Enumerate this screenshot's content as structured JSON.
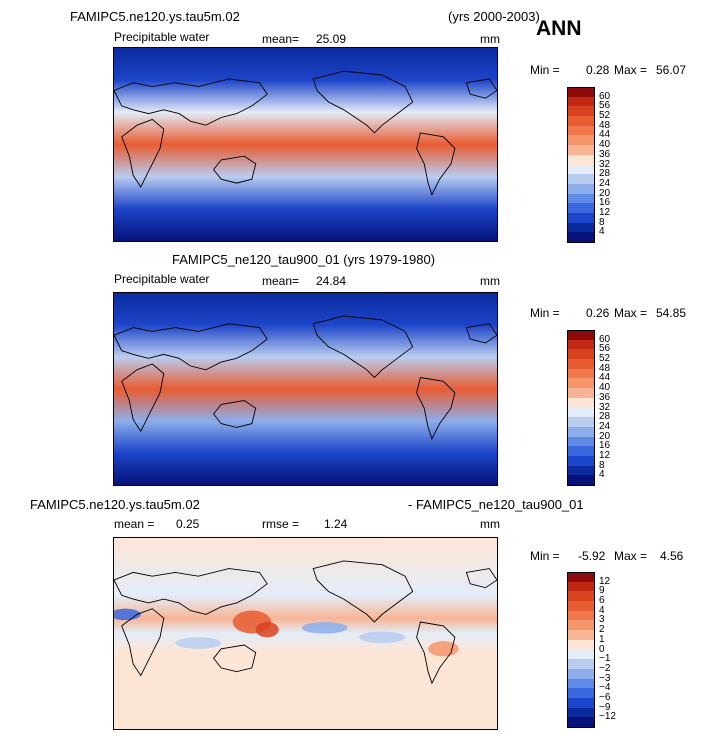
{
  "season": "ANN",
  "panels": [
    {
      "case": "FAMIPC5.ne120.ys.tau5m.02",
      "years": "(yrs 2000-2003)",
      "variable": "Precipitable water",
      "mean_label": "mean=",
      "mean_value": "25.09",
      "units": "mm",
      "min_label": "Min =",
      "min_value": "0.28",
      "max_label": "Max =",
      "max_value": "56.07"
    },
    {
      "case": "FAMIPC5_ne120_tau900_01 (yrs 1979-1980)",
      "variable": "Precipitable water",
      "mean_label": "mean=",
      "mean_value": "24.84",
      "units": "mm",
      "min_label": "Min =",
      "min_value": "0.26",
      "max_label": "Max =",
      "max_value": "54.85"
    },
    {
      "case_a": "FAMIPC5.ne120.ys.tau5m.02",
      "case_b": "- FAMIPC5_ne120_tau900_01",
      "mean_label": "mean =",
      "mean_value": "0.25",
      "rmse_label": "rmse =",
      "rmse_value": "1.24",
      "units": "mm",
      "min_label": "Min =",
      "min_value": "-5.92",
      "max_label": "Max =",
      "max_value": "4.56"
    }
  ],
  "chart_data": [
    {
      "type": "heatmap",
      "title": "Precipitable water",
      "units": "mm",
      "colorbar_levels": [
        "60",
        "56",
        "52",
        "48",
        "44",
        "40",
        "36",
        "32",
        "28",
        "24",
        "20",
        "16",
        "12",
        "8",
        "4"
      ],
      "colors": [
        "#8c0b0b",
        "#c02814",
        "#d9421f",
        "#e85c32",
        "#f0784a",
        "#f4966a",
        "#f7b596",
        "#fde5d6",
        "#e3ecf8",
        "#b9cdf0",
        "#8daeeb",
        "#5f8ae6",
        "#3b68de",
        "#1d45c9",
        "#0a2a9e",
        "#06127a"
      ],
      "zonal_mean_by_latitude": {
        "lat": [
          -90,
          -60,
          -30,
          0,
          30,
          60,
          90
        ],
        "value": [
          2,
          8,
          24,
          50,
          28,
          10,
          4
        ]
      },
      "stats": {
        "mean": 25.09,
        "min": 0.28,
        "max": 56.07
      }
    },
    {
      "type": "heatmap",
      "title": "Precipitable water",
      "units": "mm",
      "colorbar_levels": [
        "60",
        "56",
        "52",
        "48",
        "44",
        "40",
        "36",
        "32",
        "28",
        "24",
        "20",
        "16",
        "12",
        "8",
        "4"
      ],
      "colors": [
        "#8c0b0b",
        "#c02814",
        "#d9421f",
        "#e85c32",
        "#f0784a",
        "#f4966a",
        "#f7b596",
        "#fde5d6",
        "#e3ecf8",
        "#b9cdf0",
        "#8daeeb",
        "#5f8ae6",
        "#3b68de",
        "#1d45c9",
        "#0a2a9e",
        "#06127a"
      ],
      "zonal_mean_by_latitude": {
        "lat": [
          -90,
          -60,
          -30,
          0,
          30,
          60,
          90
        ],
        "value": [
          2,
          8,
          23,
          49,
          27,
          10,
          4
        ]
      },
      "stats": {
        "mean": 24.84,
        "min": 0.26,
        "max": 54.85
      }
    },
    {
      "type": "heatmap",
      "units": "mm",
      "colorbar_levels": [
        "12",
        "9",
        "6",
        "4",
        "3",
        "2",
        "1",
        "0",
        "−1",
        "−2",
        "−3",
        "−4",
        "−6",
        "−9",
        "−12"
      ],
      "colors": [
        "#8c0b0b",
        "#c02814",
        "#d9421f",
        "#e85c32",
        "#f0784a",
        "#f4966a",
        "#f7b596",
        "#fde5d6",
        "#e3ecf8",
        "#b9cdf0",
        "#8daeeb",
        "#5f8ae6",
        "#3b68de",
        "#1d45c9",
        "#0a2a9e",
        "#06127a"
      ],
      "stats": {
        "mean": 0.25,
        "rmse": 1.24,
        "min": -5.92,
        "max": 4.56
      }
    }
  ]
}
